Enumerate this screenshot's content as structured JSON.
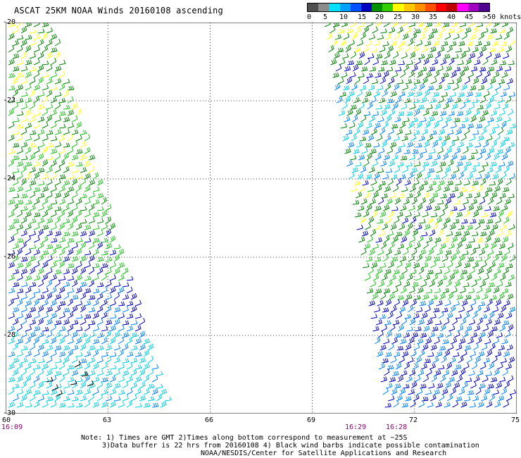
{
  "title": "ASCAT 25KM NOAA Winds 20160108 ascending",
  "legend": {
    "unit_label": ">50 knots",
    "stops": [
      "0",
      "5",
      "10",
      "15",
      "20",
      "25",
      "30",
      "35",
      "40",
      "45"
    ],
    "colors": [
      "#505050",
      "#8c8c8c",
      "#00e0ff",
      "#00a0ff",
      "#0050ff",
      "#0000c0",
      "#009000",
      "#30d000",
      "#ffff00",
      "#ffc800",
      "#ff9000",
      "#ff5000",
      "#ff0000",
      "#c00000",
      "#ff00ff",
      "#a000c0",
      "#500090"
    ]
  },
  "map": {
    "lon_ticks": [
      "60",
      "63",
      "66",
      "69",
      "72",
      "75"
    ],
    "lat_ticks": [
      "-20",
      "-22",
      "-24",
      "-26",
      "-28",
      "-30"
    ],
    "lon_range": [
      60,
      75
    ],
    "lat_range": [
      -30,
      -20
    ],
    "grid": "dotted",
    "swaths": [
      {
        "name": "west",
        "time": "16:09"
      },
      {
        "name": "east",
        "times": [
          "16:29",
          "16:28"
        ]
      }
    ],
    "wind_colors": {
      "0-5": "#505050",
      "5-10": "#00d0e0",
      "10-15": "#0080ff",
      "15-20": "#0000c0",
      "20-25": "#008000",
      "25-30": "#20c020",
      "30-35": "#ffff20",
      "contaminated": "#000000"
    }
  },
  "notes": [
    "Note: 1) Times are GMT 2)Times along bottom correspond to measurement at ~25S",
    "3)Data buffer is 22 hrs from 20160108 4) Black wind barbs indicate possible contamination",
    "NOAA/NESDIS/Center for Satellite Applications and Research"
  ]
}
